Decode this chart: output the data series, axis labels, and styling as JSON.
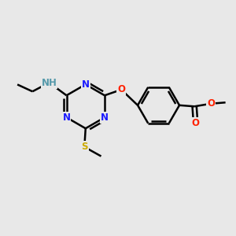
{
  "background_color": "#e8e8e8",
  "atom_colors": {
    "C": "#000000",
    "N": "#1a1aff",
    "O": "#ff2200",
    "S": "#ccaa00",
    "H": "#5599aa"
  },
  "bond_color": "#000000",
  "bond_width": 1.8,
  "font_size": 8.5,
  "figsize": [
    3.0,
    3.0
  ],
  "dpi": 100,
  "xlim": [
    0,
    10
  ],
  "ylim": [
    0,
    10
  ]
}
